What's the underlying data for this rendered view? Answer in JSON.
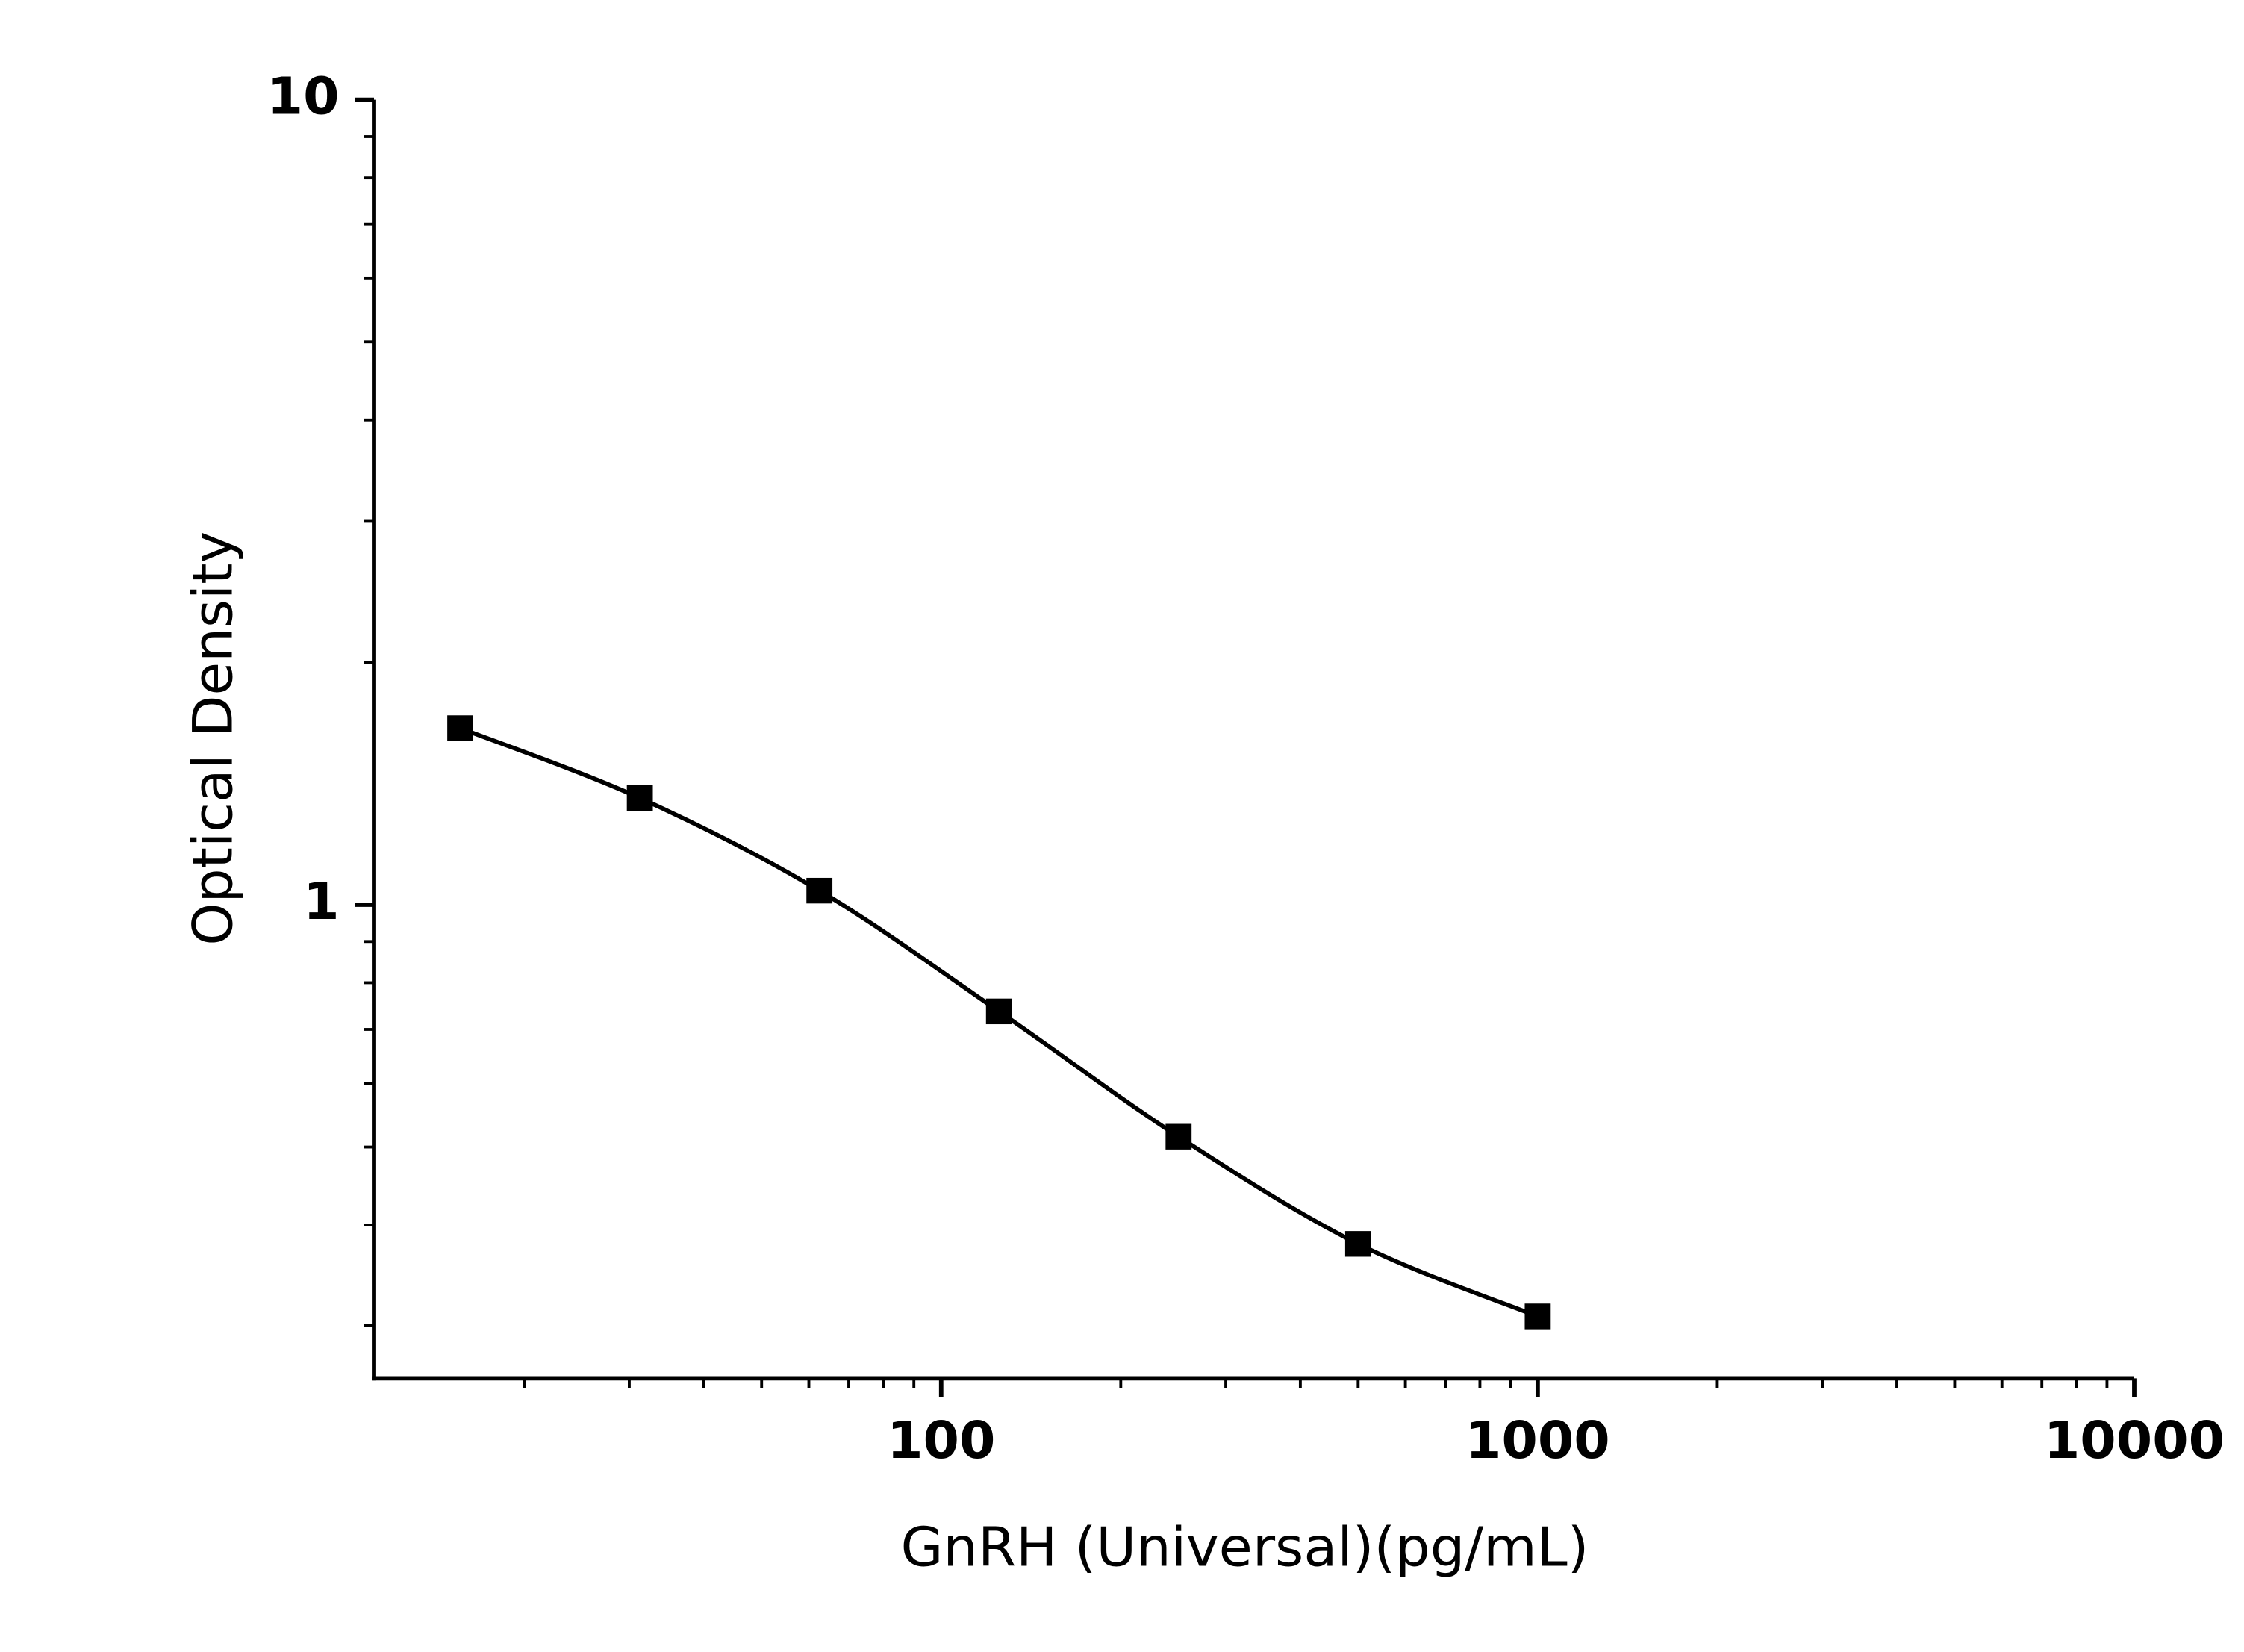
{
  "chart_data": {
    "type": "line",
    "x_label": "GnRH (Universal)(pg/mL)",
    "y_label": "Optical Density",
    "x": [
      15.625,
      31.25,
      62.5,
      125,
      250,
      500,
      1000
    ],
    "series": [
      {
        "color": "#000000",
        "values": [
          1.657,
          1.357,
          1.041,
          0.737,
          0.515,
          0.379,
          0.308
        ]
      }
    ],
    "xlim": [
      11.2,
      10000
    ],
    "ylim": [
      0.258,
      10
    ],
    "xticks": [
      100,
      1000,
      10000
    ],
    "yticks": [
      1,
      10
    ],
    "xscale": "log",
    "yscale": "log",
    "minor_ticks": true,
    "grid": false,
    "marker": "square"
  }
}
